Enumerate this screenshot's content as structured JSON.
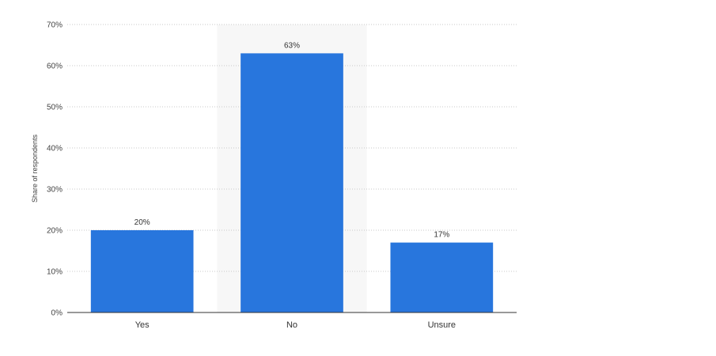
{
  "chart_data": {
    "type": "bar",
    "categories": [
      "Yes",
      "No",
      "Unsure"
    ],
    "values": [
      20,
      63,
      17
    ],
    "value_labels": [
      "20%",
      "63%",
      "17%"
    ],
    "ylabel": "Share of respondents",
    "ylim": [
      0,
      70
    ],
    "y_ticks": [
      0,
      10,
      20,
      30,
      40,
      50,
      60,
      70
    ],
    "y_tick_labels": [
      "0%",
      "10%",
      "20%",
      "30%",
      "40%",
      "50%",
      "60%",
      "70%"
    ],
    "grid": true,
    "highlighted_category": "No",
    "colors": {
      "bar": "#2876dd",
      "highlight_band": "#f7f7f7",
      "grid": "#c8c8c8",
      "axis": "#333333"
    }
  }
}
